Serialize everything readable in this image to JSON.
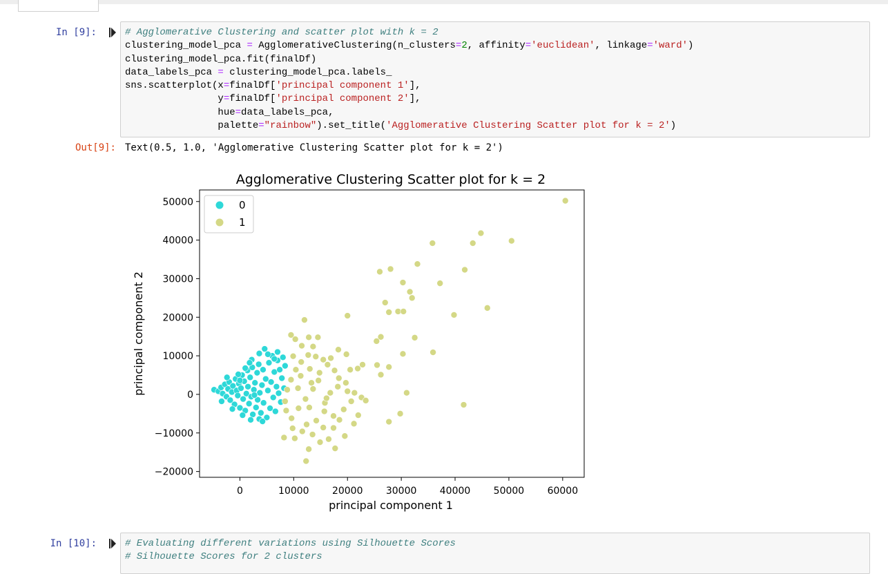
{
  "cells": {
    "cell9": {
      "in_prompt": "In [9]:",
      "out_prompt": "Out[9]:",
      "output_text": "Text(0.5, 1.0, 'Agglomerative Clustering Scatter plot for k = 2')"
    },
    "cell10": {
      "in_prompt": "In [10]:",
      "code_line1": "# Evaluating different variations using Silhouette Scores",
      "code_line2": "# Silhouette Scores for 2 clusters"
    }
  },
  "code9": {
    "l1": "# Agglomerative Clustering and scatter plot with k = 2",
    "l2a": "clustering_model_pca ",
    "l2b": "=",
    "l2c": " AgglomerativeClustering(n_clusters",
    "l2d": "=",
    "l2e": "2",
    "l2f": ", affinity",
    "l2g": "=",
    "l2h": "'euclidean'",
    "l2i": ", linkage",
    "l2j": "=",
    "l2k": "'ward'",
    "l2l": ")",
    "l3": "clustering_model_pca.fit(finalDf)",
    "l4a": "data_labels_pca ",
    "l4b": "=",
    "l4c": " clustering_model_pca.labels_",
    "l5a": "sns.scatterplot(x",
    "l5b": "=",
    "l5c": "finalDf[",
    "l5d": "'principal component 1'",
    "l5e": "],",
    "l6a": "                y",
    "l6b": "=",
    "l6c": "finalDf[",
    "l6d": "'principal component 2'",
    "l6e": "],",
    "l7a": "                hue",
    "l7b": "=",
    "l7c": "data_labels_pca,",
    "l8a": "                palette",
    "l8b": "=",
    "l8c": "\"rainbow\"",
    "l8d": ").set_title(",
    "l8e": "'Agglomerative Clustering Scatter plot for k = 2'",
    "l8f": ")"
  },
  "colors": {
    "cluster0": "#2ed8d8",
    "cluster1": "#d4d886",
    "prompt_in": "#303f9f",
    "prompt_out": "#d84315"
  },
  "chart_data": {
    "type": "scatter",
    "title": "Agglomerative Clustering Scatter plot for k = 2",
    "xlabel": "principal component 1",
    "ylabel": "principal component 2",
    "xlim": [
      -7500,
      64000
    ],
    "ylim": [
      -21500,
      53000
    ],
    "xticks": [
      0,
      10000,
      20000,
      30000,
      40000,
      50000,
      60000
    ],
    "yticks": [
      -20000,
      -10000,
      0,
      10000,
      20000,
      30000,
      40000,
      50000
    ],
    "xtick_labels": [
      "0",
      "10000",
      "20000",
      "30000",
      "40000",
      "50000",
      "60000"
    ],
    "ytick_labels": [
      "−20000",
      "−10000",
      "0",
      "10000",
      "20000",
      "30000",
      "40000",
      "50000"
    ],
    "legend_position": "top-left",
    "series": [
      {
        "name": "0",
        "points": [
          [
            -4800,
            1200
          ],
          [
            -4000,
            800
          ],
          [
            -3500,
            1800
          ],
          [
            -3200,
            200
          ],
          [
            -2800,
            2600
          ],
          [
            -2500,
            -600
          ],
          [
            -2200,
            1400
          ],
          [
            -2000,
            3200
          ],
          [
            -1800,
            -1500
          ],
          [
            -1500,
            600
          ],
          [
            -1300,
            2200
          ],
          [
            -1000,
            -2600
          ],
          [
            -800,
            4000
          ],
          [
            -600,
            1000
          ],
          [
            -400,
            -300
          ],
          [
            -200,
            2800
          ],
          [
            0,
            -3500
          ],
          [
            200,
            1600
          ],
          [
            400,
            5000
          ],
          [
            600,
            -1200
          ],
          [
            800,
            3400
          ],
          [
            1000,
            -4200
          ],
          [
            1200,
            200
          ],
          [
            1400,
            6200
          ],
          [
            1500,
            2000
          ],
          [
            1700,
            -2400
          ],
          [
            1900,
            4400
          ],
          [
            2100,
            -600
          ],
          [
            2300,
            7000
          ],
          [
            2400,
            -5200
          ],
          [
            2600,
            1200
          ],
          [
            2800,
            3000
          ],
          [
            3000,
            -3400
          ],
          [
            3200,
            5600
          ],
          [
            3300,
            -1400
          ],
          [
            3500,
            7800
          ],
          [
            3700,
            400
          ],
          [
            3900,
            -4800
          ],
          [
            4100,
            2400
          ],
          [
            4300,
            6400
          ],
          [
            4400,
            -2200
          ],
          [
            4600,
            11800
          ],
          [
            4800,
            4000
          ],
          [
            5000,
            -6000
          ],
          [
            5200,
            1000
          ],
          [
            5400,
            8200
          ],
          [
            5600,
            -3600
          ],
          [
            5800,
            3200
          ],
          [
            6000,
            10000
          ],
          [
            6200,
            -800
          ],
          [
            6400,
            5800
          ],
          [
            6600,
            -4400
          ],
          [
            6800,
            2000
          ],
          [
            7000,
            8800
          ],
          [
            7200,
            300
          ],
          [
            7400,
            6400
          ],
          [
            7600,
            -2000
          ],
          [
            7800,
            4200
          ],
          [
            8000,
            9600
          ],
          [
            8200,
            1600
          ],
          [
            1000,
            6800
          ],
          [
            -300,
            5200
          ],
          [
            2200,
            9000
          ],
          [
            3600,
            10600
          ],
          [
            5200,
            10400
          ],
          [
            7000,
            11000
          ],
          [
            -1400,
            -3800
          ],
          [
            500,
            -5400
          ],
          [
            2000,
            -6600
          ],
          [
            3600,
            -6400
          ],
          [
            -2400,
            4400
          ],
          [
            8400,
            7400
          ],
          [
            4200,
            -7000
          ],
          [
            -3400,
            -1800
          ],
          [
            6400,
            9200
          ],
          [
            1800,
            8200
          ],
          [
            0,
            3600
          ],
          [
            2700,
            -200
          ]
        ]
      },
      {
        "name": "1",
        "points": [
          [
            60500,
            50200
          ],
          [
            50500,
            39800
          ],
          [
            44800,
            41800
          ],
          [
            43300,
            39200
          ],
          [
            35800,
            39200
          ],
          [
            33000,
            33800
          ],
          [
            28000,
            32500
          ],
          [
            26000,
            31800
          ],
          [
            37200,
            28800
          ],
          [
            30300,
            29000
          ],
          [
            31600,
            26600
          ],
          [
            32000,
            25000
          ],
          [
            27000,
            23800
          ],
          [
            27700,
            21300
          ],
          [
            29400,
            21500
          ],
          [
            30400,
            21500
          ],
          [
            41800,
            32300
          ],
          [
            46000,
            22400
          ],
          [
            39800,
            20600
          ],
          [
            20000,
            20400
          ],
          [
            12000,
            19300
          ],
          [
            9500,
            15400
          ],
          [
            10300,
            14300
          ],
          [
            12800,
            14800
          ],
          [
            14500,
            14800
          ],
          [
            26200,
            14900
          ],
          [
            25400,
            13800
          ],
          [
            32500,
            14700
          ],
          [
            35900,
            10900
          ],
          [
            30300,
            10500
          ],
          [
            25500,
            7600
          ],
          [
            22800,
            7700
          ],
          [
            27700,
            7100
          ],
          [
            26200,
            5100
          ],
          [
            31000,
            400
          ],
          [
            41600,
            -2700
          ],
          [
            29800,
            -5000
          ],
          [
            27700,
            -7100
          ],
          [
            22000,
            -5400
          ],
          [
            21200,
            -7600
          ],
          [
            19500,
            -10800
          ],
          [
            17700,
            -14000
          ],
          [
            16500,
            -11600
          ],
          [
            12300,
            -17300
          ],
          [
            12800,
            -14200
          ],
          [
            8200,
            -11200
          ],
          [
            9800,
            -8800
          ],
          [
            11600,
            -9600
          ],
          [
            13500,
            -10400
          ],
          [
            14900,
            -12400
          ],
          [
            15500,
            -8600
          ],
          [
            17400,
            -5600
          ],
          [
            18500,
            -6600
          ],
          [
            19300,
            -3900
          ],
          [
            20700,
            -1800
          ],
          [
            22600,
            -800
          ],
          [
            23400,
            -1600
          ],
          [
            20000,
            800
          ],
          [
            21300,
            400
          ],
          [
            19700,
            3000
          ],
          [
            18400,
            4200
          ],
          [
            17600,
            6200
          ],
          [
            16300,
            7700
          ],
          [
            15500,
            9000
          ],
          [
            14100,
            9800
          ],
          [
            12700,
            10200
          ],
          [
            11400,
            8400
          ],
          [
            10400,
            6400
          ],
          [
            9500,
            3800
          ],
          [
            8800,
            1200
          ],
          [
            8400,
            -1800
          ],
          [
            8600,
            -4200
          ],
          [
            9600,
            -6200
          ],
          [
            10900,
            -3600
          ],
          [
            12200,
            -1200
          ],
          [
            13600,
            1400
          ],
          [
            14600,
            3600
          ],
          [
            15800,
            -2200
          ],
          [
            16800,
            400
          ],
          [
            18200,
            2000
          ],
          [
            11300,
            4800
          ],
          [
            13000,
            6600
          ],
          [
            14200,
            -6800
          ],
          [
            12400,
            -7800
          ],
          [
            10200,
            -11400
          ],
          [
            11500,
            12600
          ],
          [
            13600,
            12400
          ],
          [
            18300,
            11600
          ],
          [
            19800,
            10400
          ],
          [
            16900,
            9400
          ],
          [
            20500,
            6400
          ],
          [
            21900,
            6700
          ],
          [
            17400,
            -8700
          ],
          [
            15700,
            -4400
          ],
          [
            13300,
            3000
          ],
          [
            9900,
            9900
          ],
          [
            10800,
            1600
          ],
          [
            12900,
            -3400
          ],
          [
            14800,
            5600
          ],
          [
            16100,
            -1000
          ]
        ]
      }
    ]
  }
}
